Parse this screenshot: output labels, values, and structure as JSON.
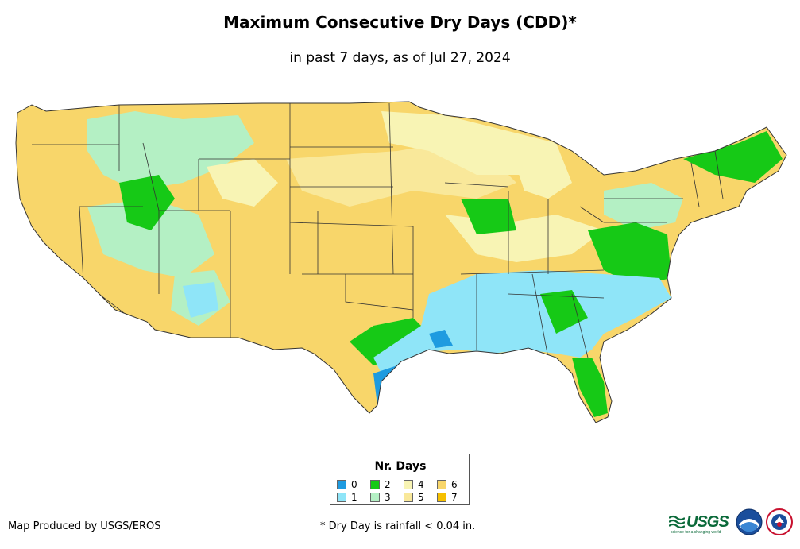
{
  "title": "Maximum Consecutive Dry Days (CDD)*",
  "subtitle": "in past 7 days, as of Jul 27, 2024",
  "legend": {
    "title": "Nr. Days",
    "items": [
      {
        "label": "0",
        "color": "#1e9be0"
      },
      {
        "label": "2",
        "color": "#16c916"
      },
      {
        "label": "4",
        "color": "#f8f4b4"
      },
      {
        "label": "6",
        "color": "#f8d66a"
      },
      {
        "label": "7",
        "color": "#f6c000"
      },
      {
        "label": "1",
        "color": "#8fe5f8"
      },
      {
        "label": "3",
        "color": "#b4f0c4"
      },
      {
        "label": "5",
        "color": "#f9e89a"
      }
    ]
  },
  "credit": "Map Produced by USGS/EROS",
  "footnote": "* Dry Day is rainfall < 0.04 in.",
  "logos": {
    "usgs": "USGS",
    "usgs_tagline": "science for a changing world",
    "noaa": "noaa-logo",
    "nws": "nws-logo"
  },
  "map": {
    "region": "Contiguous United States",
    "base_color": "#f8d66a",
    "border_color": "#333333"
  }
}
